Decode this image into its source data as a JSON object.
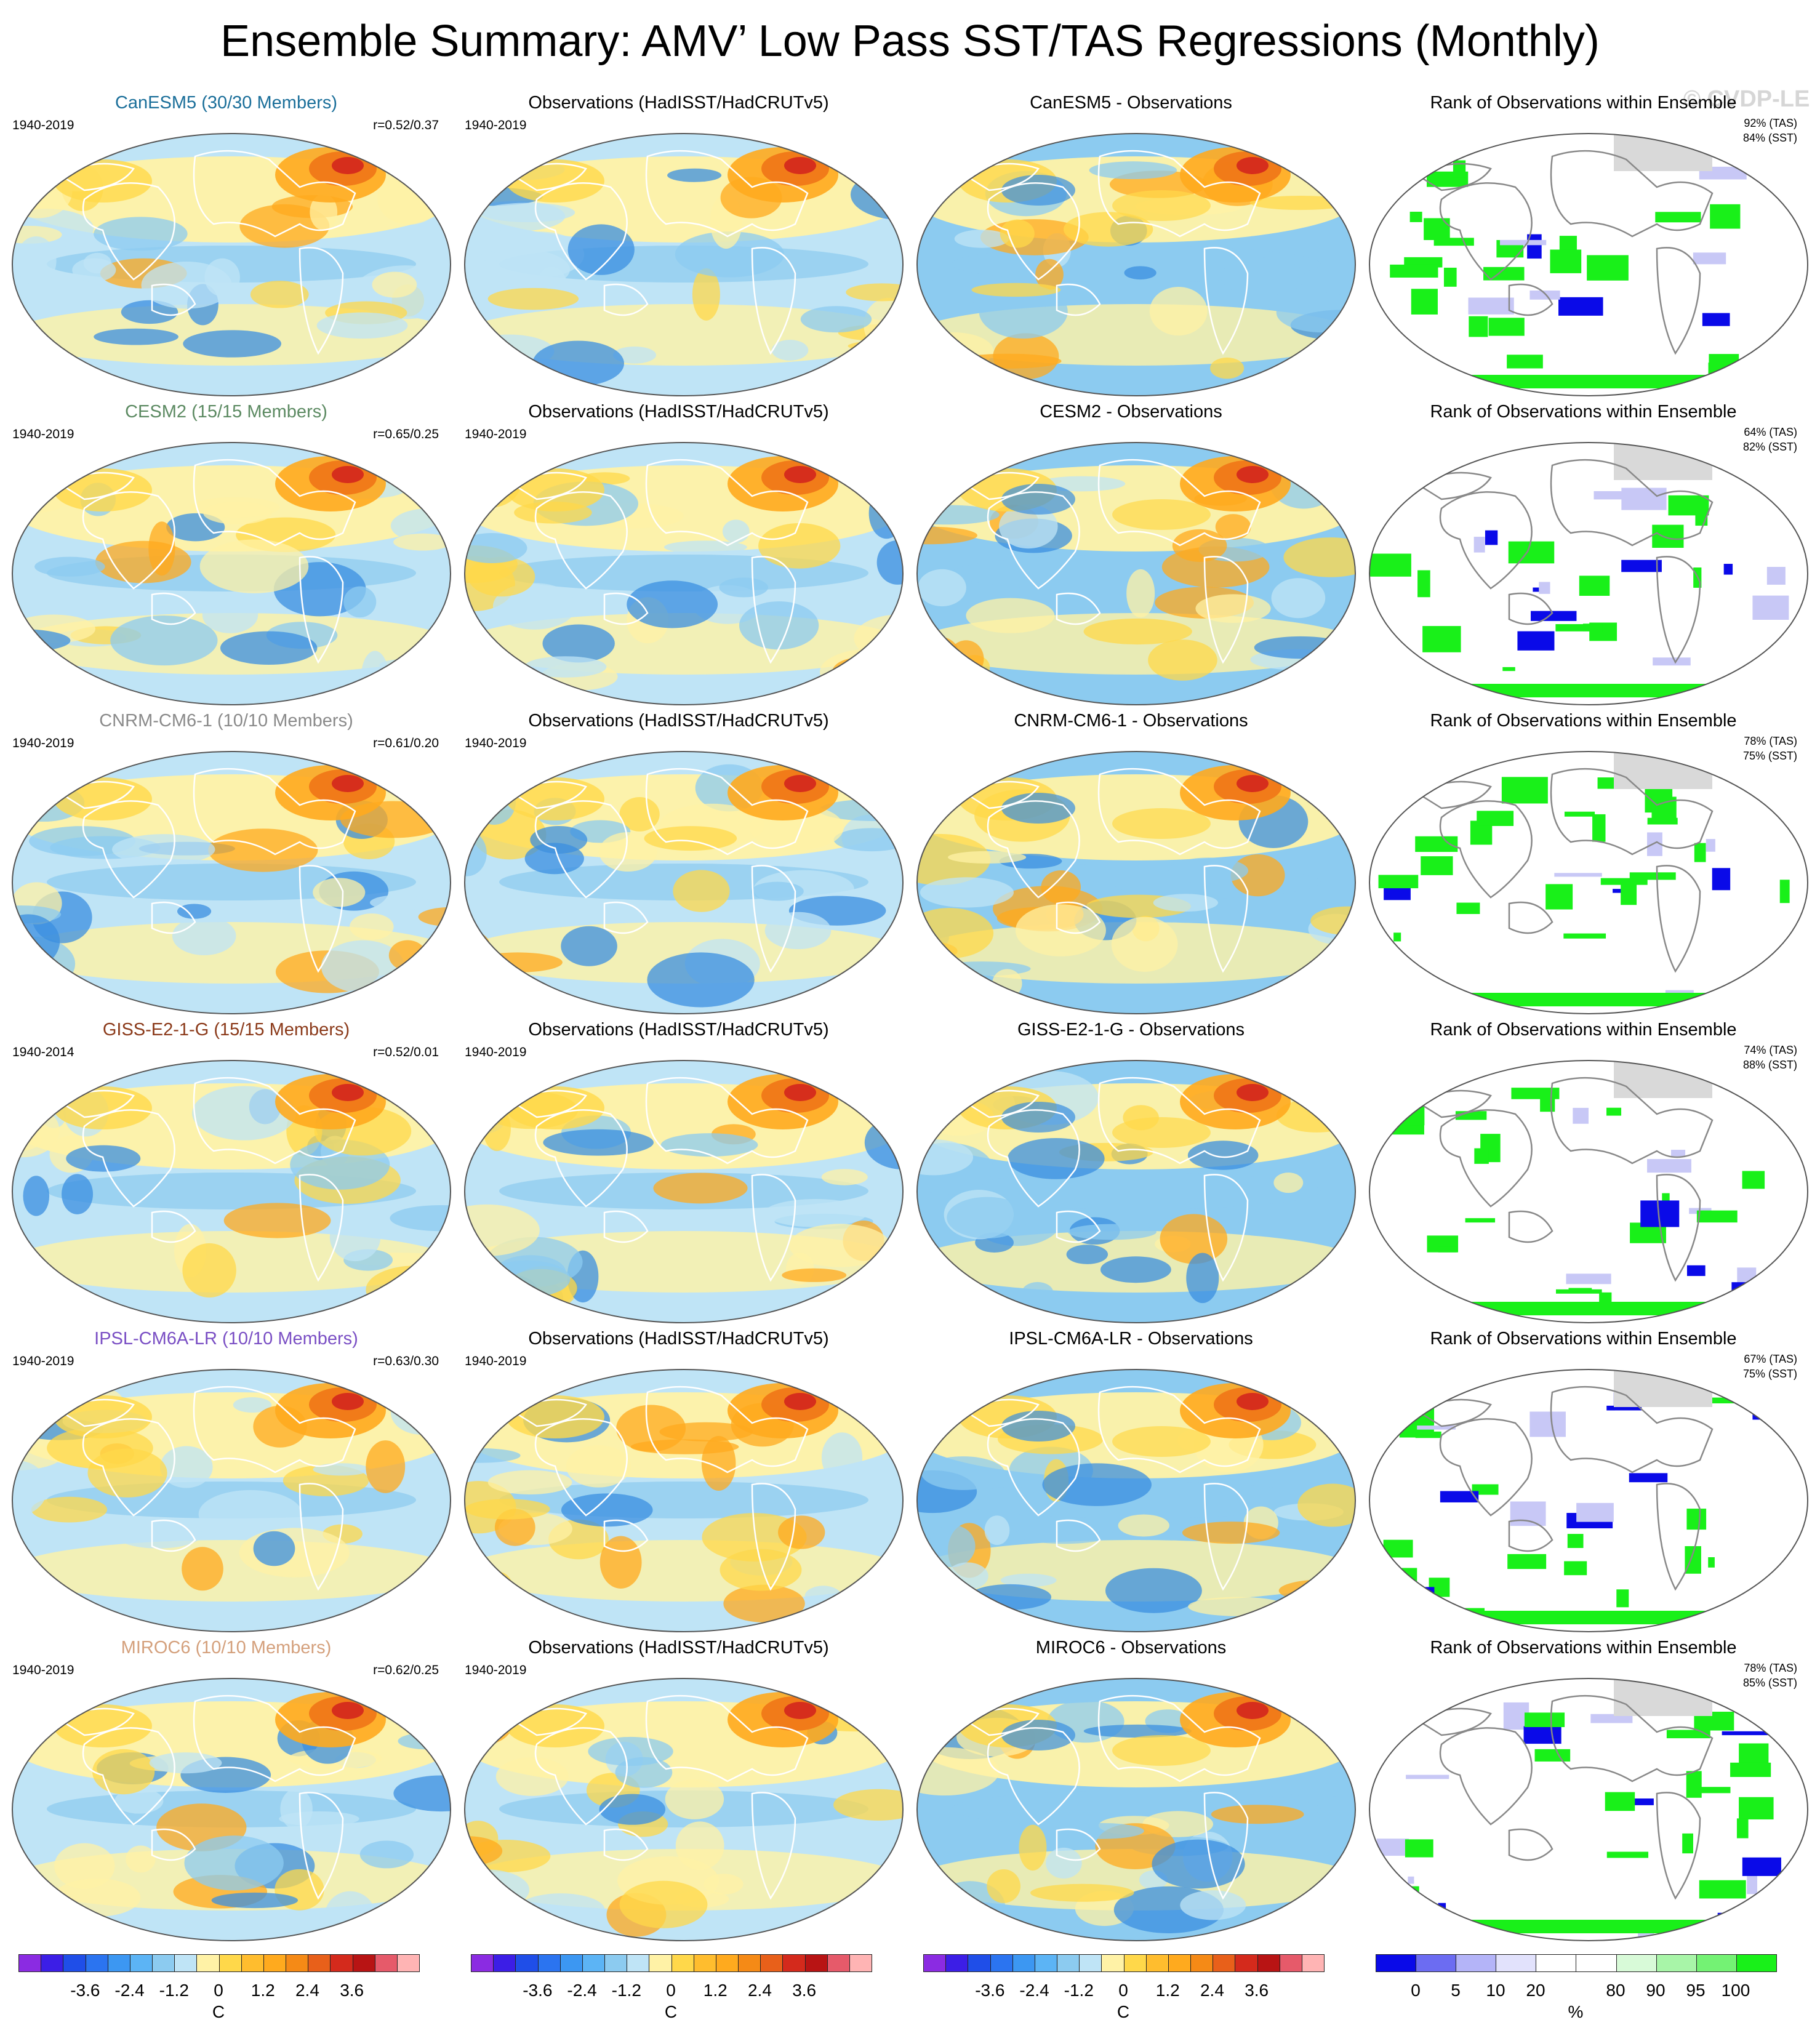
{
  "title": "Ensemble Summary: AMV’ Low Pass SST/TAS Regressions (Monthly)",
  "watermark": "© CVDP-LE",
  "obs_title": "Observations (HadISST/HadCRUTv5)",
  "obs_period": "1940-2019",
  "rank_title": "Rank of Observations within Ensemble",
  "colors": {
    "ocean_light_blue": "#bfe4f6",
    "mid_blue": "#8ccbf0",
    "deep_blue": "#3b8fe0",
    "light_yellow": "#fff2a6",
    "yellow": "#ffd84a",
    "orange": "#ffaa1e",
    "dark_orange": "#f07818",
    "red": "#d42a1c",
    "pink": "#ffb4b4",
    "rank_green": "#19f019",
    "rank_blue": "#0a0ae8",
    "land_grey": "#d9d9d9"
  },
  "rows": [
    {
      "model": "CanESM5 (30/30 Members)",
      "model_color": "#1b6f9a",
      "period": "1940-2019",
      "corr": "r=0.52/0.37",
      "diff": "CanESM5 - Observations",
      "tas": "92% (TAS)",
      "sst": "84% (SST)"
    },
    {
      "model": "CESM2 (15/15 Members)",
      "model_color": "#5c8a62",
      "period": "1940-2019",
      "corr": "r=0.65/0.25",
      "diff": "CESM2 - Observations",
      "tas": "64% (TAS)",
      "sst": "82% (SST)"
    },
    {
      "model": "CNRM-CM6-1 (10/10 Members)",
      "model_color": "#8a8a8a",
      "period": "1940-2019",
      "corr": "r=0.61/0.20",
      "diff": "CNRM-CM6-1 - Observations",
      "tas": "78% (TAS)",
      "sst": "75% (SST)"
    },
    {
      "model": "GISS-E2-1-G (15/15 Members)",
      "model_color": "#8b3a1a",
      "period": "1940-2014",
      "corr": "r=0.52/0.01",
      "diff": "GISS-E2-1-G - Observations",
      "tas": "74% (TAS)",
      "sst": "88% (SST)"
    },
    {
      "model": "IPSL-CM6A-LR (10/10 Members)",
      "model_color": "#7a4fc4",
      "period": "1940-2019",
      "corr": "r=0.63/0.30",
      "diff": "IPSL-CM6A-LR - Observations",
      "tas": "67% (TAS)",
      "sst": "75% (SST)"
    },
    {
      "model": "MIROC6 (10/10 Members)",
      "model_color": "#d4a07c",
      "period": "1940-2019",
      "corr": "r=0.62/0.25",
      "diff": "MIROC6 - Observations",
      "tas": "78% (TAS)",
      "sst": "85% (SST)"
    }
  ],
  "temp_colorbar": {
    "colors": [
      "#8b2be2",
      "#3c1ee6",
      "#1f4ee8",
      "#2b74f0",
      "#3c97f2",
      "#5cb4f5",
      "#8ccbf0",
      "#bfe4f6",
      "#fff2a6",
      "#ffd84a",
      "#ffbd2e",
      "#ffaa1e",
      "#f58a16",
      "#e8601a",
      "#d42a1c",
      "#b81414",
      "#e65a6a",
      "#ffb4b4"
    ],
    "tick_labels": [
      "-3.6",
      "-2.4",
      "-1.2",
      "0",
      "1.2",
      "2.4",
      "3.6"
    ],
    "unit": "C"
  },
  "rank_colorbar": {
    "colors": [
      "#0a0ae8",
      "#6c6cf2",
      "#b4b4f8",
      "#e2e2fc",
      "#ffffff",
      "#ffffff",
      "#d8fad8",
      "#a8f5a8",
      "#74f274",
      "#19f019"
    ],
    "tick_labels": [
      "0",
      "5",
      "10",
      "20",
      "80",
      "90",
      "95",
      "100"
    ],
    "unit": "%"
  }
}
